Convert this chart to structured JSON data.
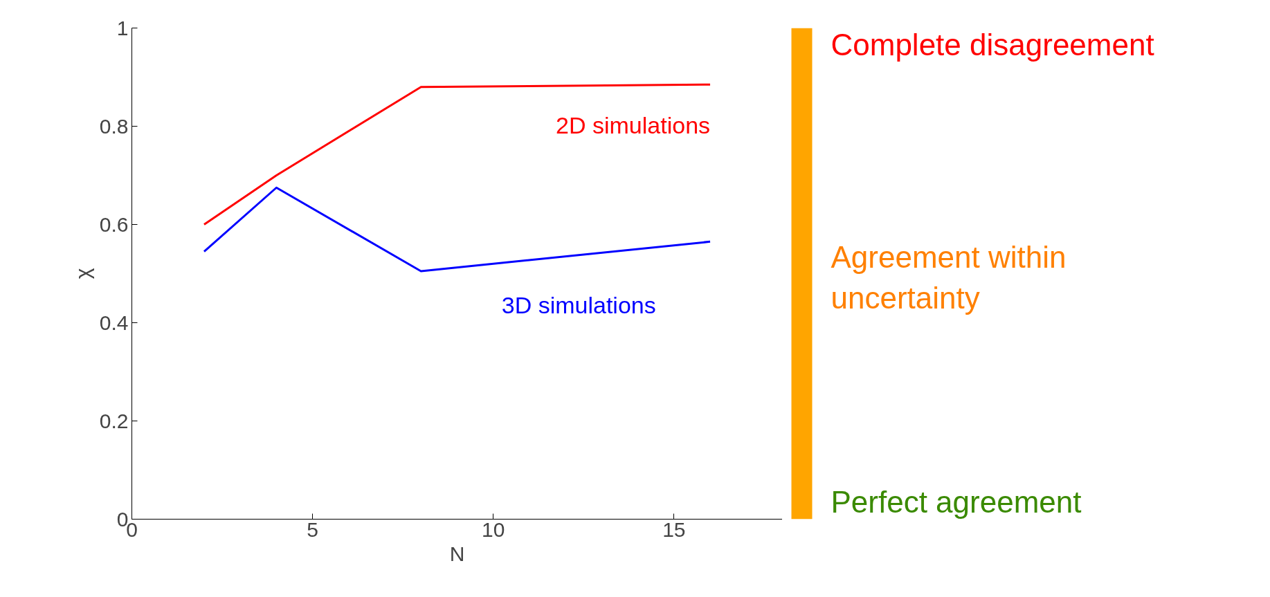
{
  "chart_data": {
    "type": "line",
    "xlabel": "N",
    "ylabel": "χ",
    "x": [
      2,
      4,
      8,
      16
    ],
    "series": [
      {
        "name": "2D simulations",
        "color": "#ff0000",
        "values": [
          0.6,
          0.7,
          0.88,
          0.885
        ]
      },
      {
        "name": "3D simulations",
        "color": "#0000ff",
        "values": [
          0.545,
          0.675,
          0.505,
          0.565
        ]
      }
    ],
    "xlim": [
      0,
      18
    ],
    "xticks": [
      0,
      5,
      10,
      15
    ],
    "ylim": [
      0,
      1
    ],
    "yticks": [
      0,
      0.2,
      0.4,
      0.6,
      0.8,
      1
    ],
    "grid": false,
    "marker": "none",
    "line_style": "solid",
    "annotations": [
      "Complete disagreement",
      "Agreement within\nuncertainty",
      "Perfect agreement"
    ]
  }
}
